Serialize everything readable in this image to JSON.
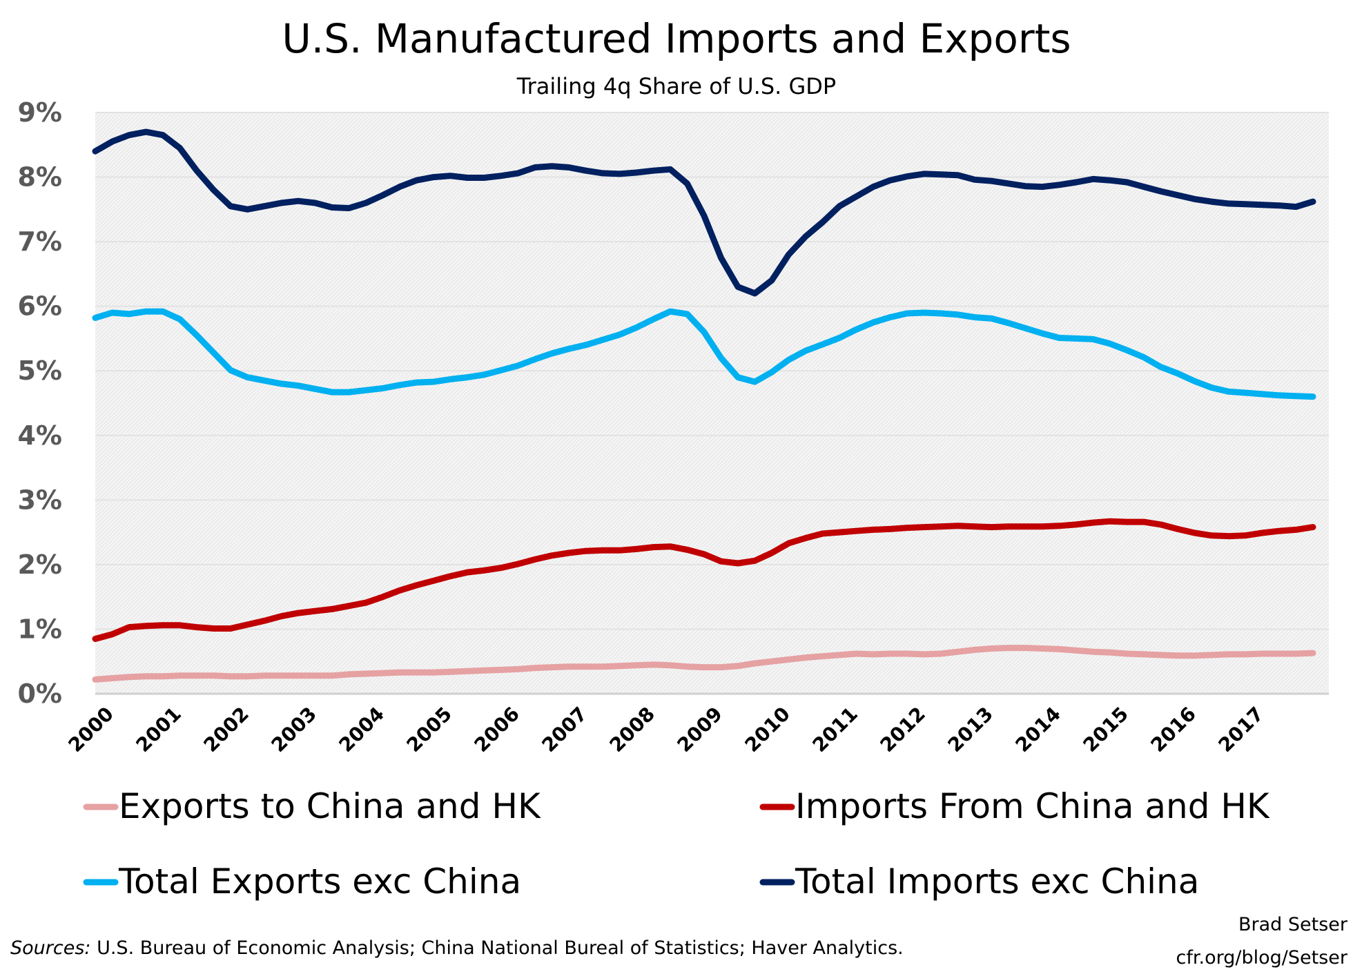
{
  "chart_data": {
    "type": "line",
    "title": "U.S. Manufactured Imports and Exports",
    "subtitle": "Trailing 4q Share of U.S. GDP",
    "ylim": [
      0,
      9
    ],
    "yticks": [
      "0%",
      "1%",
      "2%",
      "3%",
      "4%",
      "5%",
      "6%",
      "7%",
      "8%",
      "9%"
    ],
    "xticks": [
      "2000",
      "2001",
      "2002",
      "2003",
      "2004",
      "2005",
      "2006",
      "2007",
      "2008",
      "2009",
      "2010",
      "2011",
      "2012",
      "2013",
      "2014",
      "2015",
      "2016",
      "2017"
    ],
    "x_start": "2000Q1",
    "frequency": "quarterly",
    "grid": true,
    "legend_placement": "bottom",
    "series": [
      {
        "name": "Exports to China and HK",
        "color": "#E6A1A3",
        "values": [
          0.22,
          0.24,
          0.26,
          0.27,
          0.27,
          0.28,
          0.28,
          0.28,
          0.27,
          0.27,
          0.28,
          0.28,
          0.28,
          0.28,
          0.28,
          0.3,
          0.31,
          0.32,
          0.33,
          0.33,
          0.33,
          0.34,
          0.35,
          0.36,
          0.37,
          0.38,
          0.4,
          0.41,
          0.42,
          0.42,
          0.42,
          0.43,
          0.44,
          0.45,
          0.44,
          0.42,
          0.41,
          0.41,
          0.43,
          0.47,
          0.5,
          0.53,
          0.56,
          0.58,
          0.6,
          0.62,
          0.61,
          0.62,
          0.62,
          0.61,
          0.62,
          0.65,
          0.68,
          0.7,
          0.71,
          0.71,
          0.7,
          0.69,
          0.67,
          0.65,
          0.64,
          0.62,
          0.61,
          0.6,
          0.59,
          0.59,
          0.6,
          0.61,
          0.61,
          0.62,
          0.62,
          0.62,
          0.63
        ]
      },
      {
        "name": "Imports From China and HK",
        "color": "#C00000",
        "values": [
          0.85,
          0.92,
          1.03,
          1.05,
          1.06,
          1.06,
          1.03,
          1.01,
          1.01,
          1.07,
          1.13,
          1.2,
          1.25,
          1.28,
          1.31,
          1.36,
          1.41,
          1.5,
          1.6,
          1.68,
          1.75,
          1.82,
          1.88,
          1.91,
          1.95,
          2.01,
          2.08,
          2.14,
          2.18,
          2.21,
          2.22,
          2.22,
          2.24,
          2.27,
          2.28,
          2.23,
          2.16,
          2.05,
          2.02,
          2.06,
          2.18,
          2.33,
          2.41,
          2.48,
          2.5,
          2.52,
          2.54,
          2.55,
          2.57,
          2.58,
          2.59,
          2.6,
          2.59,
          2.58,
          2.59,
          2.59,
          2.59,
          2.6,
          2.62,
          2.65,
          2.67,
          2.66,
          2.66,
          2.62,
          2.55,
          2.49,
          2.45,
          2.44,
          2.45,
          2.49,
          2.52,
          2.54,
          2.58
        ]
      },
      {
        "name": "Total Exports exc China",
        "color": "#00B0F0",
        "values": [
          5.82,
          5.9,
          5.88,
          5.92,
          5.92,
          5.8,
          5.55,
          5.28,
          5.01,
          4.9,
          4.85,
          4.8,
          4.77,
          4.72,
          4.67,
          4.67,
          4.7,
          4.73,
          4.78,
          4.82,
          4.83,
          4.87,
          4.9,
          4.94,
          5.01,
          5.08,
          5.18,
          5.27,
          5.34,
          5.4,
          5.48,
          5.56,
          5.67,
          5.8,
          5.92,
          5.88,
          5.6,
          5.2,
          4.9,
          4.83,
          4.98,
          5.17,
          5.31,
          5.41,
          5.51,
          5.64,
          5.75,
          5.83,
          5.89,
          5.9,
          5.89,
          5.87,
          5.83,
          5.81,
          5.74,
          5.66,
          5.58,
          5.51,
          5.5,
          5.49,
          5.42,
          5.32,
          5.21,
          5.06,
          4.96,
          4.84,
          4.74,
          4.68,
          4.66,
          4.64,
          4.62,
          4.61,
          4.6
        ]
      },
      {
        "name": "Total Imports exc China",
        "color": "#002060",
        "values": [
          8.4,
          8.55,
          8.65,
          8.7,
          8.65,
          8.45,
          8.1,
          7.8,
          7.55,
          7.5,
          7.55,
          7.6,
          7.63,
          7.6,
          7.53,
          7.52,
          7.6,
          7.72,
          7.85,
          7.95,
          8.0,
          8.02,
          7.99,
          7.99,
          8.02,
          8.06,
          8.15,
          8.17,
          8.15,
          8.1,
          8.06,
          8.05,
          8.07,
          8.1,
          8.12,
          7.9,
          7.4,
          6.75,
          6.3,
          6.2,
          6.4,
          6.8,
          7.08,
          7.3,
          7.55,
          7.7,
          7.85,
          7.95,
          8.01,
          8.05,
          8.04,
          8.03,
          7.96,
          7.94,
          7.9,
          7.86,
          7.85,
          7.88,
          7.92,
          7.97,
          7.95,
          7.92,
          7.85,
          7.78,
          7.72,
          7.66,
          7.62,
          7.59,
          7.58,
          7.57,
          7.56,
          7.54,
          7.62
        ]
      }
    ]
  },
  "footer": {
    "sources_label": "Sources:",
    "sources_text": " U.S. Bureau of Economic Analysis; China National Bureal of Statistics; Haver Analytics.",
    "author": "Brad Setser",
    "url": "cfr.org/blog/Setser"
  }
}
